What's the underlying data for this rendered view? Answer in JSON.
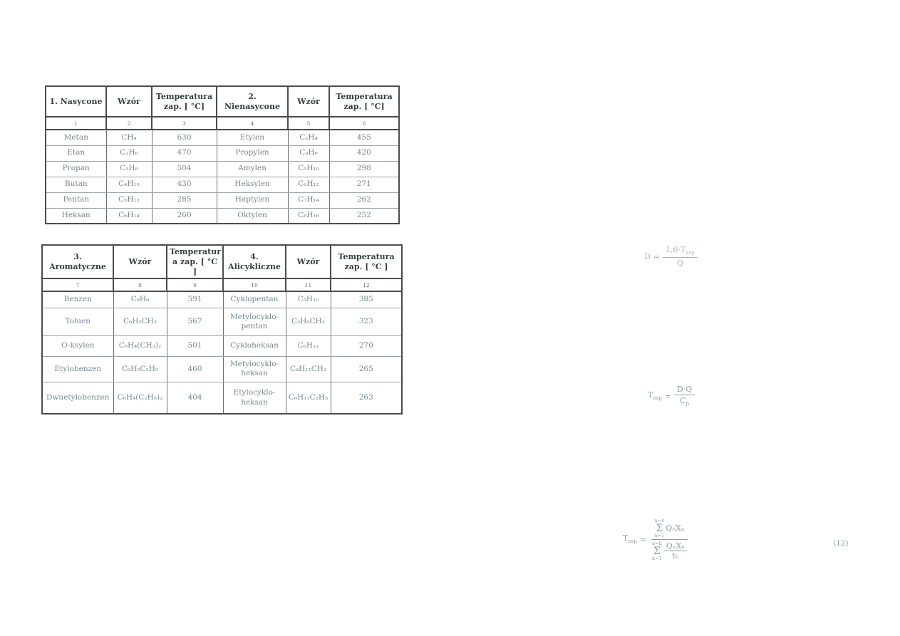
{
  "tables": [
    {
      "title": "flash-point table 1",
      "columns": [
        {
          "header": "1. Nasycone",
          "num": "1"
        },
        {
          "header": "Wzór",
          "num": "2"
        },
        {
          "header": "Temperatura\nzap. [ °C]",
          "num": "3"
        },
        {
          "header": "2. Nienasycone",
          "num": "4"
        },
        {
          "header": "Wzór",
          "num": "5"
        },
        {
          "header": "Temperatura\nzap. [ °C]",
          "num": "6"
        }
      ],
      "rows": [
        [
          "Metan",
          "CH₄",
          "630",
          "Etylen",
          "C₂H₄",
          "455"
        ],
        [
          "Etan",
          "C₂H₆",
          "470",
          "Propylen",
          "C₃H₆",
          "420"
        ],
        [
          "Propan",
          "C₃H₈",
          "504",
          "Amylen",
          "C₅H₁₀",
          "298"
        ],
        [
          "Butan",
          "C₄H₁₀",
          "430",
          "Heksylen",
          "C₆H₁₂",
          "271"
        ],
        [
          "Pentan",
          "C₅H₁₂",
          "285",
          "Heptylen",
          "C₇H₁₄",
          "262"
        ],
        [
          "Heksan",
          "C₆H₁₄",
          "260",
          "Oktylen",
          "C₈H₁₆",
          "252"
        ]
      ]
    },
    {
      "title": "flash-point table 2",
      "columns": [
        {
          "header": "3. Aromatyczne",
          "num": "7"
        },
        {
          "header": "Temperatur\na zap. [ °C ]",
          "num": "9"
        },
        {
          "header": "Wzór",
          "num": "8"
        },
        {
          "header": "4. Alicykliczne",
          "num": "10"
        },
        {
          "header": "Wzór",
          "num": "11"
        },
        {
          "header": "Temperatura\nzap. [ °C ]",
          "num": "12"
        }
      ],
      "columns_ordered": [
        {
          "header": "3. Aromatyczne",
          "num": "7"
        },
        {
          "header": "Wzór",
          "num": "8"
        },
        {
          "header": "Temperatur\na zap. [ °C ]",
          "num": "9"
        },
        {
          "header": "4. Alicykliczne",
          "num": "10"
        },
        {
          "header": "Wzór",
          "num": "11"
        },
        {
          "header": "Temperatura\nzap. [ °C ]",
          "num": "12"
        }
      ],
      "rows": [
        [
          "Benzen",
          "C₆H₆",
          "591",
          "Cyklopentan",
          "C₅H₁₀",
          "385"
        ],
        [
          "Toluen",
          "C₆H₅CH₃",
          "567",
          "Metylocyklo-\npentan",
          "C₅H₉CH₃",
          "323"
        ],
        [
          "O-ksylen",
          "C₆H₄(CH₃)₂",
          "501",
          "Cykloheksan",
          "C₆H₁₂",
          "270"
        ],
        [
          "Etylobenzen",
          "C₆H₅C₂H₅",
          "460",
          "Metylocyklo-\nheksan",
          "C₆H₁₁CH₃",
          "265"
        ],
        [
          "Dwuetylobenzen",
          "C₆H₄(C₂H₅)₂",
          "404",
          "Etylocyklo-\nheksan",
          "C₆H₁₁C₂H₅",
          "263"
        ]
      ]
    }
  ],
  "formulas": {
    "sigma": "Σ",
    "f1": {
      "lhs": "D",
      "eq": "=",
      "num_pre": "1,6·T",
      "num_sub": "zap",
      "den": "Q"
    },
    "f2": {
      "lhs_pre": "T",
      "lhs_sub": "zap",
      "eq": "=",
      "num": "D·Q",
      "den_pre": "C",
      "den_sub": "p"
    },
    "f3": {
      "lhs_pre": "T",
      "lhs_sub": "zap",
      "eq": "=",
      "sum_upper": "n=k",
      "sum_lower": "n=1",
      "num_terms": "QₙXₙ",
      "den_num": "QₙXₙ",
      "den_den": "tₙ"
    },
    "equation_number": "(12)"
  }
}
